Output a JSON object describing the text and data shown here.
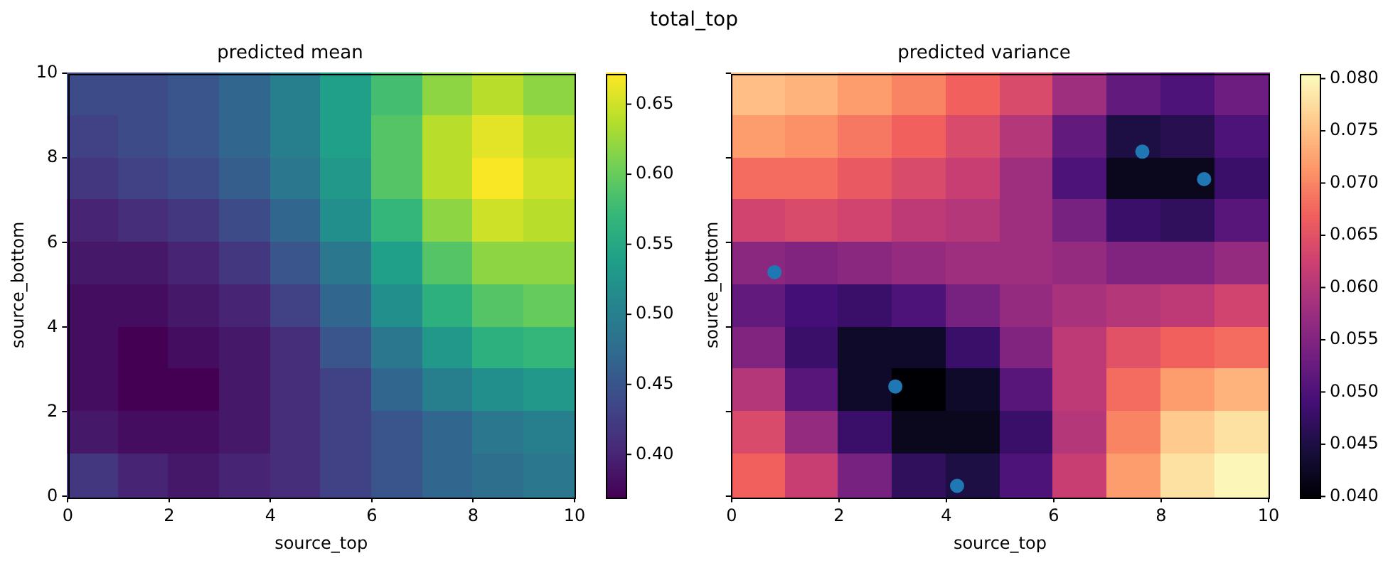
{
  "chart_data": [
    {
      "type": "heatmap",
      "title": "predicted mean",
      "xlabel": "source_top",
      "ylabel": "source_bottom",
      "annotations": [
        "total_top"
      ],
      "x": [
        0.5,
        1.5,
        2.5,
        3.5,
        4.5,
        5.5,
        6.5,
        7.5,
        8.5,
        9.5
      ],
      "xlim": [
        0,
        10
      ],
      "ylim": [
        0,
        10
      ],
      "xticks": [
        0,
        2,
        4,
        6,
        8,
        10
      ],
      "yticks": [
        0,
        2,
        4,
        6,
        8,
        10
      ],
      "clim": [
        0.37,
        0.672
      ],
      "cticks": [
        {
          "value": 0.4,
          "label": "0.40"
        },
        {
          "value": 0.45,
          "label": "0.45"
        },
        {
          "value": 0.5,
          "label": "0.50"
        },
        {
          "value": 0.55,
          "label": "0.55"
        },
        {
          "value": 0.6,
          "label": "0.60"
        },
        {
          "value": 0.65,
          "label": "0.65"
        }
      ],
      "cells": [
        [
          0.44,
          0.44,
          0.45,
          0.47,
          0.5,
          0.54,
          0.58,
          0.62,
          0.64,
          0.62
        ],
        [
          0.43,
          0.44,
          0.45,
          0.47,
          0.5,
          0.54,
          0.59,
          0.64,
          0.66,
          0.64
        ],
        [
          0.42,
          0.43,
          0.44,
          0.46,
          0.49,
          0.53,
          0.59,
          0.64,
          0.67,
          0.65
        ],
        [
          0.4,
          0.41,
          0.42,
          0.44,
          0.47,
          0.52,
          0.57,
          0.62,
          0.65,
          0.64
        ],
        [
          0.39,
          0.39,
          0.4,
          0.42,
          0.45,
          0.49,
          0.54,
          0.59,
          0.62,
          0.62
        ],
        [
          0.38,
          0.38,
          0.39,
          0.4,
          0.43,
          0.47,
          0.52,
          0.56,
          0.59,
          0.6
        ],
        [
          0.38,
          0.37,
          0.38,
          0.39,
          0.41,
          0.45,
          0.49,
          0.53,
          0.56,
          0.57
        ],
        [
          0.38,
          0.37,
          0.37,
          0.39,
          0.41,
          0.43,
          0.47,
          0.5,
          0.52,
          0.53
        ],
        [
          0.39,
          0.38,
          0.38,
          0.39,
          0.41,
          0.43,
          0.45,
          0.47,
          0.49,
          0.5
        ],
        [
          0.42,
          0.4,
          0.39,
          0.4,
          0.41,
          0.43,
          0.45,
          0.47,
          0.48,
          0.49
        ]
      ]
    },
    {
      "type": "heatmap",
      "title": "predicted variance",
      "xlabel": "source_top",
      "ylabel": "source_bottom",
      "tick_labels": "x",
      "marker": "circle",
      "x": [
        0.5,
        1.5,
        2.5,
        3.5,
        4.5,
        5.5,
        6.5,
        7.5,
        8.5,
        9.5
      ],
      "xlim": [
        0,
        10
      ],
      "ylim": [
        0,
        10
      ],
      "xticks": [
        0,
        2,
        4,
        6,
        8,
        10
      ],
      "yticks": [
        0,
        2,
        4,
        6,
        8,
        10
      ],
      "clim": [
        0.04,
        0.0805
      ],
      "cticks": [
        {
          "value": 0.04,
          "label": "0.040"
        },
        {
          "value": 0.045,
          "label": "0.045"
        },
        {
          "value": 0.05,
          "label": "0.050"
        },
        {
          "value": 0.055,
          "label": "0.055"
        },
        {
          "value": 0.06,
          "label": "0.060"
        },
        {
          "value": 0.065,
          "label": "0.065"
        },
        {
          "value": 0.07,
          "label": "0.070"
        },
        {
          "value": 0.075,
          "label": "0.075"
        },
        {
          "value": 0.08,
          "label": "0.080"
        }
      ],
      "cells": [
        [
          0.075,
          0.074,
          0.072,
          0.07,
          0.067,
          0.064,
          0.058,
          0.052,
          0.05,
          0.053
        ],
        [
          0.072,
          0.071,
          0.069,
          0.067,
          0.064,
          0.06,
          0.052,
          0.045,
          0.046,
          0.05
        ],
        [
          0.068,
          0.068,
          0.066,
          0.064,
          0.062,
          0.058,
          0.05,
          0.042,
          0.042,
          0.048
        ],
        [
          0.063,
          0.064,
          0.063,
          0.061,
          0.06,
          0.058,
          0.054,
          0.048,
          0.047,
          0.051
        ],
        [
          0.056,
          0.055,
          0.056,
          0.057,
          0.058,
          0.058,
          0.057,
          0.055,
          0.055,
          0.057
        ],
        [
          0.052,
          0.049,
          0.048,
          0.05,
          0.054,
          0.057,
          0.059,
          0.06,
          0.061,
          0.063
        ],
        [
          0.055,
          0.048,
          0.043,
          0.043,
          0.048,
          0.055,
          0.061,
          0.065,
          0.067,
          0.068
        ],
        [
          0.06,
          0.051,
          0.043,
          0.04,
          0.043,
          0.051,
          0.061,
          0.068,
          0.072,
          0.074
        ],
        [
          0.064,
          0.057,
          0.048,
          0.042,
          0.042,
          0.048,
          0.06,
          0.07,
          0.076,
          0.078
        ],
        [
          0.067,
          0.062,
          0.054,
          0.047,
          0.045,
          0.05,
          0.062,
          0.072,
          0.078,
          0.08
        ]
      ],
      "series": [
        {
          "type": "scatter",
          "color": "#1f77b4",
          "x": [
            0.8,
            3.05,
            4.2,
            7.65,
            8.8
          ],
          "values": [
            5.3,
            2.6,
            0.25,
            8.15,
            7.5
          ]
        }
      ]
    }
  ]
}
